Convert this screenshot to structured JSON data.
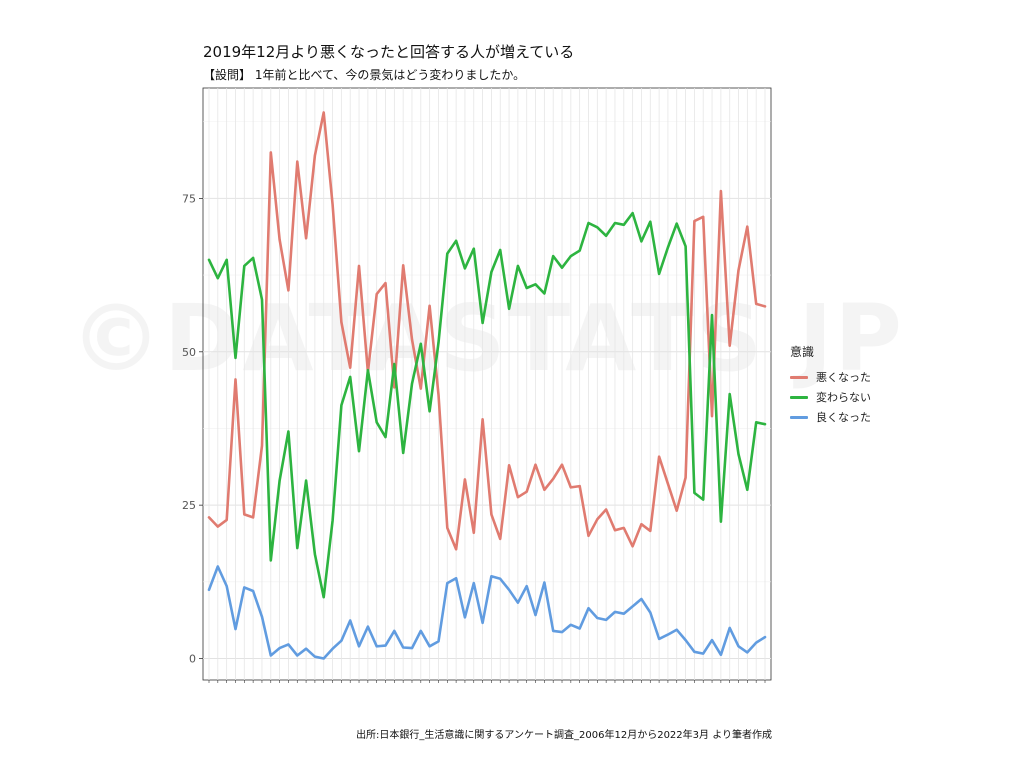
{
  "chart_data": {
    "type": "line",
    "title": "2019年12月より悪くなったと回答する人が増えている",
    "subtitle": "【設問】 1年前と比べて、今の景気はどう変わりましたか。",
    "caption": "出所:日本銀行_生活意識に関するアンケート調査_2006年12月から2022年3月 より筆者作成",
    "watermark": "©DATASTATS JP",
    "legend_title": "意識",
    "legend_position": "right",
    "grid": true,
    "ylim": [
      -3.5,
      93
    ],
    "y_ticks": [
      0,
      25,
      50,
      75
    ],
    "x_tick_labels_note": "x tick labels are too small to read",
    "series": [
      {
        "name": "悪くなった",
        "color": "#E07B70",
        "values": [
          23.0,
          21.5,
          22.6,
          45.5,
          23.5,
          23.0,
          34.7,
          82.5,
          68.3,
          60.0,
          81.0,
          68.5,
          82.0,
          89.0,
          74.0,
          54.8,
          47.4,
          64.0,
          46.7,
          59.4,
          61.2,
          44.2,
          64.1,
          52.0,
          44.0,
          57.5,
          43.0,
          21.3,
          17.8,
          29.2,
          20.5,
          39.0,
          23.5,
          19.5,
          31.5,
          26.3,
          27.2,
          31.6,
          27.5,
          29.3,
          31.6,
          27.9,
          28.1,
          20.0,
          22.7,
          24.3,
          20.9,
          21.3,
          18.3,
          21.9,
          20.8,
          32.9,
          28.5,
          24.1,
          29.5,
          71.3,
          72.0,
          39.5,
          76.2,
          51.0,
          63.3,
          70.4,
          57.8,
          57.4
        ]
      },
      {
        "name": "変わらない",
        "color": "#2DB440",
        "values": [
          65.0,
          62.0,
          65.0,
          49.0,
          64.0,
          65.3,
          58.5,
          16.0,
          29.0,
          37.0,
          18.0,
          29.0,
          17.0,
          10.0,
          22.5,
          41.3,
          45.9,
          33.8,
          47.0,
          38.5,
          36.1,
          48.0,
          33.5,
          44.8,
          51.3,
          40.3,
          51.5,
          66.0,
          68.1,
          63.6,
          66.8,
          54.7,
          63.0,
          66.6,
          57.0,
          64.0,
          60.4,
          61.0,
          59.5,
          65.6,
          63.7,
          65.6,
          66.5,
          71.0,
          70.3,
          68.9,
          71.0,
          70.7,
          72.6,
          68.0,
          71.2,
          62.7,
          67.0,
          70.9,
          67.2,
          27.0,
          25.9,
          56.0,
          22.3,
          43.1,
          33.3,
          27.5,
          38.5,
          38.2
        ]
      },
      {
        "name": "良くなった",
        "color": "#619CE0",
        "values": [
          11.2,
          15.0,
          11.8,
          4.8,
          11.6,
          11.0,
          6.8,
          0.5,
          1.7,
          2.3,
          0.5,
          1.6,
          0.3,
          0.0,
          1.6,
          2.9,
          6.2,
          2.0,
          5.2,
          2.0,
          2.1,
          4.5,
          1.8,
          1.7,
          4.5,
          2.0,
          2.8,
          12.3,
          13.1,
          6.7,
          12.3,
          5.8,
          13.4,
          13.0,
          11.2,
          9.1,
          11.8,
          7.1,
          12.4,
          4.5,
          4.3,
          5.5,
          4.9,
          8.2,
          6.6,
          6.3,
          7.6,
          7.3,
          8.5,
          9.7,
          7.5,
          3.2,
          3.9,
          4.7,
          3.0,
          1.1,
          0.8,
          3.0,
          0.6,
          5.0,
          2.0,
          1.0,
          2.6,
          3.5
        ]
      }
    ]
  }
}
